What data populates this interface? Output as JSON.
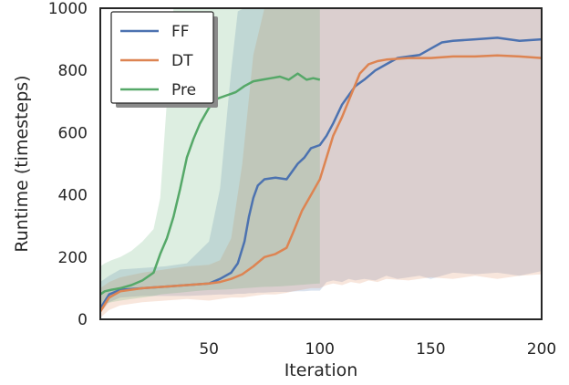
{
  "chart_data": {
    "type": "line",
    "xlabel": "Iteration",
    "ylabel": "Runtime (timesteps)",
    "xlim": [
      1,
      200
    ],
    "ylim": [
      0,
      1000
    ],
    "xticks": [
      50,
      100,
      150,
      200
    ],
    "yticks": [
      0,
      200,
      400,
      600,
      800,
      1000
    ],
    "grid": false,
    "legend_position": "top-left",
    "series": [
      {
        "name": "FF",
        "color": "#4c72b0",
        "x": [
          1,
          5,
          10,
          20,
          30,
          40,
          50,
          55,
          60,
          63,
          66,
          68,
          70,
          72,
          75,
          80,
          85,
          90,
          93,
          96,
          100,
          103,
          106,
          110,
          113,
          116,
          120,
          125,
          130,
          135,
          140,
          145,
          150,
          155,
          160,
          170,
          180,
          190,
          200
        ],
        "y": [
          35,
          80,
          95,
          100,
          105,
          110,
          115,
          130,
          150,
          180,
          250,
          330,
          390,
          430,
          450,
          455,
          450,
          500,
          520,
          550,
          560,
          590,
          630,
          690,
          720,
          750,
          770,
          800,
          820,
          840,
          845,
          850,
          870,
          890,
          895,
          900,
          905,
          895,
          900
        ],
        "band_lower": [
          20,
          55,
          70,
          75,
          75,
          75,
          78,
          80,
          80,
          82,
          82,
          84,
          84,
          86,
          86,
          88,
          88,
          90,
          90,
          92,
          92,
          120,
          125,
          120,
          130,
          125,
          130,
          125,
          140,
          130,
          135,
          140,
          130,
          140,
          150,
          145,
          150,
          140,
          155
        ],
        "band_upper": [
          120,
          140,
          160,
          165,
          170,
          180,
          250,
          420,
          800,
          990,
          1000,
          1000,
          1000,
          1000,
          1000,
          1000,
          1000,
          1000,
          1000,
          1000,
          1000,
          1000,
          1000,
          1000,
          1000,
          1000,
          1000,
          1000,
          1000,
          1000,
          1000,
          1000,
          1000,
          1000,
          1000,
          1000,
          1000,
          1000,
          1000
        ]
      },
      {
        "name": "DT",
        "color": "#dd8452",
        "x": [
          1,
          5,
          10,
          20,
          30,
          40,
          50,
          55,
          60,
          65,
          70,
          75,
          80,
          85,
          88,
          92,
          96,
          100,
          103,
          106,
          110,
          114,
          118,
          122,
          126,
          130,
          140,
          150,
          160,
          170,
          180,
          190,
          200
        ],
        "y": [
          25,
          70,
          90,
          100,
          105,
          110,
          115,
          120,
          130,
          145,
          170,
          200,
          210,
          230,
          280,
          350,
          400,
          450,
          520,
          590,
          650,
          720,
          790,
          820,
          830,
          835,
          840,
          840,
          845,
          845,
          848,
          845,
          840
        ],
        "band_lower": [
          5,
          30,
          45,
          55,
          60,
          65,
          60,
          65,
          70,
          70,
          75,
          80,
          80,
          85,
          90,
          95,
          100,
          100,
          110,
          115,
          110,
          120,
          115,
          125,
          120,
          130,
          125,
          135,
          130,
          140,
          130,
          140,
          145
        ],
        "band_upper": [
          100,
          120,
          135,
          150,
          160,
          170,
          175,
          190,
          260,
          500,
          850,
          1000,
          1000,
          1000,
          1000,
          1000,
          1000,
          1000,
          1000,
          1000,
          1000,
          1000,
          1000,
          1000,
          1000,
          1000,
          1000,
          1000,
          1000,
          1000,
          1000,
          1000,
          1000
        ]
      },
      {
        "name": "Pre",
        "color": "#55a868",
        "x": [
          1,
          3,
          6,
          10,
          15,
          20,
          25,
          28,
          31,
          34,
          37,
          40,
          43,
          46,
          50,
          54,
          58,
          62,
          66,
          70,
          74,
          78,
          82,
          86,
          90,
          94,
          97,
          100
        ],
        "y": [
          80,
          90,
          95,
          100,
          110,
          125,
          150,
          210,
          260,
          330,
          420,
          520,
          580,
          630,
          680,
          710,
          720,
          730,
          750,
          765,
          770,
          775,
          780,
          770,
          790,
          770,
          775,
          770
        ],
        "band_lower": [
          40,
          50,
          55,
          60,
          65,
          70,
          75,
          80,
          82,
          84,
          86,
          88,
          90,
          92,
          94,
          95,
          96,
          98,
          100,
          102,
          104,
          105,
          106,
          108,
          110,
          112,
          114,
          115
        ],
        "band_upper": [
          170,
          180,
          190,
          200,
          220,
          250,
          290,
          390,
          700,
          1000,
          1000,
          1000,
          1000,
          1000,
          1000,
          1000,
          1000,
          1000,
          1000,
          1000,
          1000,
          1000,
          1000,
          1000,
          1000,
          1000,
          1000,
          1000
        ]
      }
    ]
  }
}
